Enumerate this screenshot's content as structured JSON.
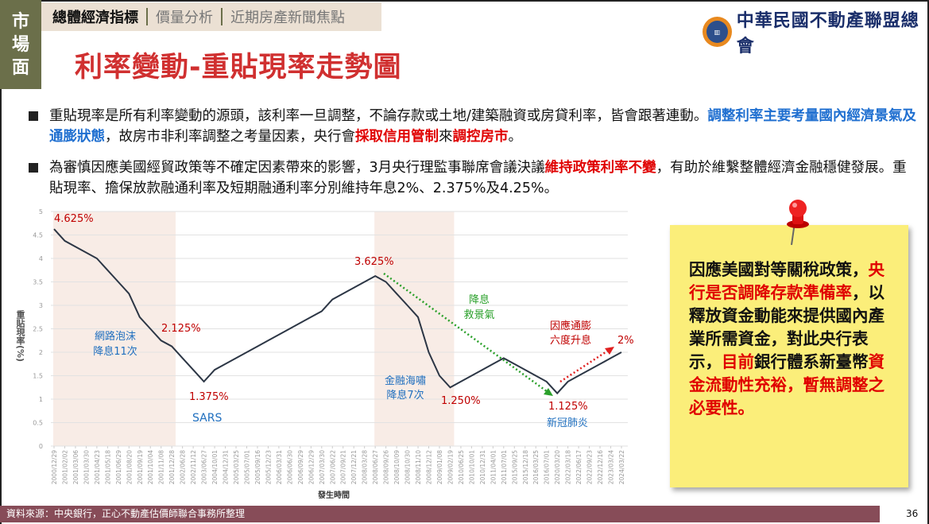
{
  "side_label": [
    "市",
    "場",
    "面"
  ],
  "tabs": [
    {
      "label": "總體經濟指標",
      "active": true
    },
    {
      "label": "價量分析"
    },
    {
      "label": "近期房產新聞焦點"
    }
  ],
  "title": "利率變動-重貼現率走勢圖",
  "logo_text": "中華民國不動產聯盟總會",
  "bullets": [
    {
      "parts": [
        {
          "t": "重貼現率是所有利率變動的源頭，該利率一旦調整，不論存款或土地/建築融資或房貸利率，皆會跟著連動。"
        },
        {
          "t": "調整利率主要考量國內經濟景氣及通膨狀態",
          "s": "blue"
        },
        {
          "t": "，故房市非利率調整之考量因素，央行會"
        },
        {
          "t": "採取信用管制",
          "s": "red"
        },
        {
          "t": "來"
        },
        {
          "t": "調控房市",
          "s": "red"
        },
        {
          "t": "。"
        }
      ]
    },
    {
      "parts": [
        {
          "t": "為審慎因應美國經貿政策等不確定因素帶來的影響，3月央行理監事聯席會議決議"
        },
        {
          "t": "維持政策利率不變",
          "s": "red"
        },
        {
          "t": "，有助於維繫整體經濟金融穩健發展。重貼現率、擔保放款融通利率及短期融通利率分別維持年息2%、2.375%及4.25%。"
        }
      ]
    }
  ],
  "note": {
    "parts": [
      {
        "t": "因應美國對等關稅政策，"
      },
      {
        "t": "央行是否調降存款準備率",
        "s": "red"
      },
      {
        "t": "，以釋放資金動能來提供國內產業所需資金，對此央行表示，"
      },
      {
        "t": "目前",
        "s": "red"
      },
      {
        "t": "銀行體系新臺幣"
      },
      {
        "t": "資金流動性充裕，暫無調整之必要性。",
        "s": "red"
      }
    ]
  },
  "footer": {
    "source": "資料來源：中央銀行，正心不動產估價師聯合事務所整理",
    "page": "36"
  },
  "chart_data": {
    "type": "line",
    "xlabel": "發生時間",
    "ylabel": "重貼現率(%)",
    "ylim": [
      0,
      5
    ],
    "yticks": [
      0,
      0.5,
      1,
      1.5,
      2,
      2.5,
      3,
      3.5,
      4,
      4.5,
      5
    ],
    "x": [
      "2000/12/29",
      "2001/02/02",
      "2001/03/06",
      "2001/03/30",
      "2001/04/23",
      "2001/05/18",
      "2001/06/29",
      "2001/08/20",
      "2001/09/19",
      "2001/10/04",
      "2001/11/08",
      "2001/12/28",
      "2002/06/28",
      "2002/11/12",
      "2003/06/27",
      "2004/10/01",
      "2004/12/31",
      "2005/03/25",
      "2005/07/01",
      "2005/09/16",
      "2005/12/23",
      "2006/03/31",
      "2006/06/30",
      "2006/09/29",
      "2006/12/29",
      "2007/03/30",
      "2007/06/22",
      "2007/09/21",
      "2007/12/21",
      "2008/03/28",
      "2008/06/27",
      "2008/09/26",
      "2008/10/09",
      "2008/10/30",
      "2008/11/10",
      "2008/12/12",
      "2009/01/08",
      "2009/02/19",
      "2010/06/25",
      "2010/10/01",
      "2010/12/31",
      "2011/04/01",
      "2011/07/01",
      "2015/09/25",
      "2015/12/18",
      "2016/03/25",
      "2016/07/01",
      "2020/03/20",
      "2022/03/18",
      "2022/06/17",
      "2022/09/23",
      "2022/12/16",
      "2023/03/24",
      "2024/03/22"
    ],
    "values": [
      4.625,
      4.375,
      4.25,
      4.125,
      4.0,
      3.75,
      3.5,
      3.25,
      2.75,
      2.5,
      2.25,
      2.125,
      1.875,
      1.625,
      1.375,
      1.625,
      1.75,
      1.875,
      2.0,
      2.125,
      2.25,
      2.375,
      2.5,
      2.625,
      2.75,
      2.875,
      3.125,
      3.25,
      3.375,
      3.5,
      3.625,
      3.5,
      3.25,
      3.0,
      2.75,
      2.0,
      1.5,
      1.25,
      1.375,
      1.5,
      1.625,
      1.75,
      1.875,
      1.75,
      1.625,
      1.5,
      1.375,
      1.125,
      1.375,
      1.5,
      1.625,
      1.75,
      1.875,
      2.0
    ],
    "shaded_ranges": [
      [
        "2000/12/29",
        "2002/03"
      ],
      [
        "2008/06/27",
        "2009/02/19"
      ]
    ],
    "annotations": {
      "a1": "4.625%",
      "a2": "網路泡沫",
      "a3": "降息11次",
      "a4": "2.125%",
      "a5": "1.375%",
      "a6": "SARS",
      "a7": "3.625%",
      "a8": "降息",
      "a9": "救景氣",
      "a10": "金融海嘯",
      "a11": "降息7次",
      "a12": "1.250%",
      "a13": "因應通膨",
      "a14": "六度升息",
      "a15": "2%",
      "a16": "1.125%",
      "a17": "新冠肺炎"
    },
    "colors": {
      "line": "#2c3645",
      "red": "#c00000",
      "blue": "#1f6fbf",
      "green": "#2aa02a",
      "shade": "#f8ece6"
    }
  }
}
